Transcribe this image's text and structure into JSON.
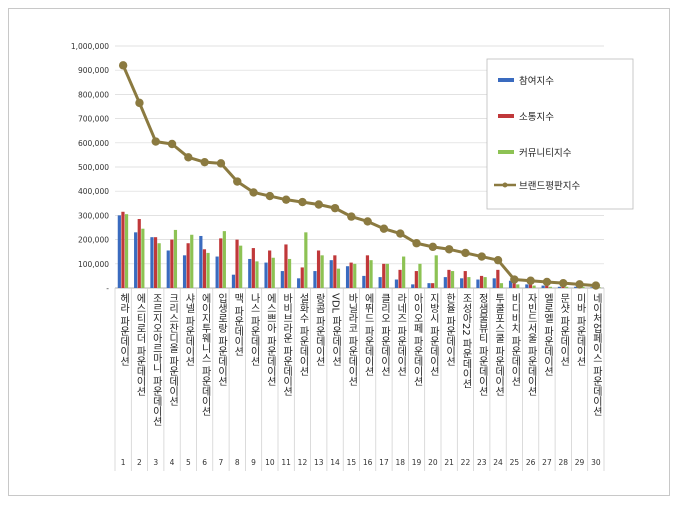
{
  "chart_data": {
    "type": "bar",
    "title": "",
    "xlabel": "",
    "ylabel": "",
    "ylim": [
      0,
      1000000
    ],
    "y_ticks": [
      "-",
      "100,000",
      "200,000",
      "300,000",
      "400,000",
      "500,000",
      "600,000",
      "700,000",
      "800,000",
      "900,000",
      "1,000,000"
    ],
    "grid": true,
    "legend_position": "right",
    "x_numbers": [
      "1",
      "2",
      "3",
      "4",
      "5",
      "6",
      "7",
      "8",
      "9",
      "10",
      "11",
      "12",
      "13",
      "14",
      "15",
      "16",
      "17",
      "18",
      "19",
      "20",
      "21",
      "22",
      "23",
      "24",
      "25",
      "26",
      "27",
      "28",
      "29",
      "30"
    ],
    "categories": [
      "헤라 파운데이션",
      "에스티로더 파운데이션",
      "조르지오아르마니 파운데이션",
      "크리스찬디올 파운데이션",
      "샤넬 파운데이션",
      "에이지투웨니스 파운데이션",
      "입생로랑 파운데이션",
      "맥 파운데이션",
      "나스 파운데이션",
      "에스쁘아 파운데이션",
      "바비브라운 파운데이션",
      "설화수 파운데이션",
      "랑콤 파운데이션",
      "VDL 파운데이션",
      "바닐라코 파운데이션",
      "에뛰드 파운데이션",
      "클리오 파운데이션",
      "라네즈 파운데이션",
      "아이오페 파운데이션",
      "지방시 파운데이션",
      "한율 파운데이션",
      "조성아22 파운데이션",
      "정샘물뷰티 파운데이션",
      "투쿨포스쿨 파운데이션",
      "비디비치 파운데이션",
      "자빈드서울 파운데이션",
      "엘로엘 파운데이션",
      "문샷 파운데이션",
      "미바 파운데이션",
      "네이처업페이스 파운데이션"
    ],
    "series": [
      {
        "name": "참여지수",
        "color": "#3a6bbf",
        "kind": "bar",
        "values": [
          300000,
          230000,
          210000,
          155000,
          135000,
          215000,
          130000,
          55000,
          120000,
          105000,
          70000,
          40000,
          70000,
          115000,
          90000,
          50000,
          45000,
          35000,
          15000,
          20000,
          45000,
          40000,
          35000,
          40000,
          30000,
          15000,
          10000,
          5000,
          5000,
          3000
        ]
      },
      {
        "name": "소통지수",
        "color": "#c0383a",
        "kind": "bar",
        "values": [
          315000,
          285000,
          210000,
          200000,
          185000,
          160000,
          205000,
          200000,
          165000,
          155000,
          180000,
          85000,
          155000,
          135000,
          105000,
          135000,
          100000,
          75000,
          70000,
          20000,
          75000,
          70000,
          50000,
          75000,
          20000,
          20000,
          15000,
          15000,
          10000,
          10000
        ]
      },
      {
        "name": "커뮤니티지수",
        "color": "#8dc254",
        "kind": "bar",
        "values": [
          305000,
          245000,
          185000,
          240000,
          220000,
          145000,
          235000,
          175000,
          110000,
          125000,
          120000,
          230000,
          135000,
          80000,
          100000,
          115000,
          100000,
          130000,
          100000,
          135000,
          70000,
          45000,
          45000,
          20000,
          15000,
          10000,
          5000,
          5000,
          5000,
          3000
        ]
      },
      {
        "name": "브랜드평판지수",
        "color": "#8b7a40",
        "kind": "line",
        "values": [
          920000,
          765000,
          605000,
          595000,
          540000,
          520000,
          515000,
          440000,
          395000,
          380000,
          365000,
          355000,
          345000,
          330000,
          295000,
          275000,
          245000,
          225000,
          185000,
          170000,
          160000,
          145000,
          130000,
          115000,
          35000,
          30000,
          25000,
          20000,
          15000,
          10000
        ]
      }
    ]
  }
}
